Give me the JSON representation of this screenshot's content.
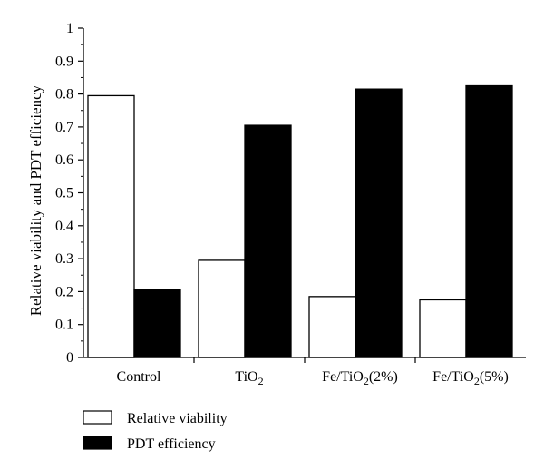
{
  "chart_data": {
    "type": "bar",
    "categories": [
      {
        "main": "Control",
        "sub": "",
        "rest": ""
      },
      {
        "main": "TiO",
        "sub": "2",
        "rest": ""
      },
      {
        "main": "Fe/TiO",
        "sub": "2",
        "rest": "(2%)"
      },
      {
        "main": "Fe/TiO",
        "sub": "2",
        "rest": "(5%)"
      }
    ],
    "series": [
      {
        "name": "Relative viability",
        "fill": "#ffffff",
        "values": [
          0.795,
          0.295,
          0.185,
          0.175
        ]
      },
      {
        "name": "PDT efficiency",
        "fill": "#000000",
        "values": [
          0.205,
          0.705,
          0.815,
          0.825
        ]
      }
    ],
    "ylabel": "Relative  viability and PDT efficiency",
    "xlabel": "",
    "ylim": [
      0,
      1
    ],
    "yticks": [
      "0",
      "0.1",
      "0.2",
      "0.3",
      "0.4",
      "0.5",
      "0.6",
      "0.7",
      "0.8",
      "0.9",
      "1"
    ],
    "grid": false,
    "legend_position": "bottom-left"
  }
}
